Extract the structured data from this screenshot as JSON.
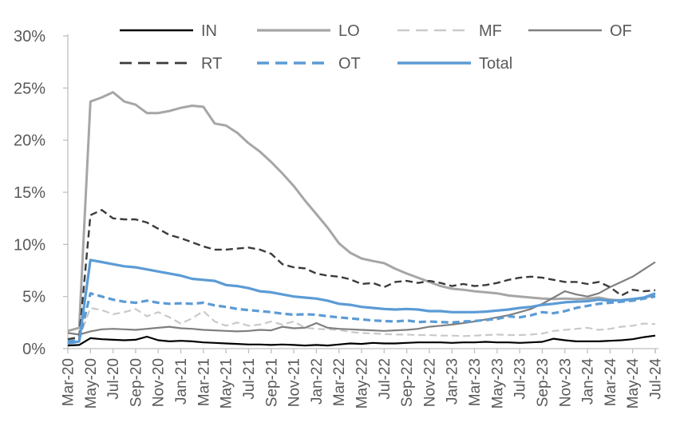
{
  "chart_data": {
    "type": "line",
    "title": "",
    "xlabel": "",
    "ylabel": "",
    "ylim": [
      0,
      30
    ],
    "grid": false,
    "legend_position": "top",
    "y_tick_labels": [
      "0%",
      "5%",
      "10%",
      "15%",
      "20%",
      "25%",
      "30%"
    ],
    "x": [
      "Mar-20",
      "Apr-20",
      "May-20",
      "Jun-20",
      "Jul-20",
      "Aug-20",
      "Sep-20",
      "Oct-20",
      "Nov-20",
      "Dec-20",
      "Jan-21",
      "Feb-21",
      "Mar-21",
      "Apr-21",
      "May-21",
      "Jun-21",
      "Jul-21",
      "Aug-21",
      "Sep-21",
      "Oct-21",
      "Nov-21",
      "Dec-21",
      "Jan-22",
      "Feb-22",
      "Mar-22",
      "Apr-22",
      "May-22",
      "Jun-22",
      "Jul-22",
      "Aug-22",
      "Sep-22",
      "Oct-22",
      "Nov-22",
      "Dec-22",
      "Jan-23",
      "Feb-23",
      "Mar-23",
      "Apr-23",
      "May-23",
      "Jun-23",
      "Jul-23",
      "Aug-23",
      "Sep-23",
      "Oct-23",
      "Nov-23",
      "Dec-23",
      "Jan-24",
      "Feb-24",
      "Mar-24",
      "Apr-24",
      "May-24",
      "Jun-24",
      "Jul-24"
    ],
    "x_labels_shown_every": 2,
    "series": [
      {
        "name": "IN",
        "color": "#000000",
        "dash": "solid",
        "width": 2.2,
        "values": [
          0.3,
          0.35,
          1.0,
          0.9,
          0.85,
          0.8,
          0.85,
          1.15,
          0.8,
          0.7,
          0.75,
          0.7,
          0.6,
          0.55,
          0.5,
          0.45,
          0.4,
          0.4,
          0.35,
          0.4,
          0.35,
          0.3,
          0.35,
          0.3,
          0.4,
          0.5,
          0.45,
          0.55,
          0.5,
          0.5,
          0.55,
          0.6,
          0.6,
          0.6,
          0.55,
          0.6,
          0.6,
          0.65,
          0.6,
          0.6,
          0.55,
          0.6,
          0.65,
          0.95,
          0.8,
          0.7,
          0.7,
          0.7,
          0.75,
          0.8,
          0.9,
          1.1,
          1.25
        ]
      },
      {
        "name": "LO",
        "color": "#A6A6A6",
        "dash": "solid",
        "width": 3,
        "values": [
          1.7,
          2.0,
          23.7,
          24.1,
          24.6,
          23.7,
          23.4,
          22.6,
          22.6,
          22.8,
          23.1,
          23.3,
          23.2,
          21.6,
          21.4,
          20.7,
          19.7,
          18.9,
          17.9,
          16.8,
          15.6,
          14.2,
          12.9,
          11.6,
          10.1,
          9.2,
          8.65,
          8.4,
          8.2,
          7.65,
          7.2,
          6.8,
          6.4,
          6.0,
          5.75,
          5.65,
          5.5,
          5.4,
          5.3,
          5.1,
          5.0,
          4.9,
          4.8,
          4.75,
          4.8,
          4.75,
          4.8,
          4.9,
          4.7,
          4.6,
          4.7,
          4.9,
          5.1
        ]
      },
      {
        "name": "MF",
        "color": "#C9C9C9",
        "dash": "dashed",
        "width": 2.2,
        "values": [
          0.9,
          1.0,
          3.9,
          3.7,
          3.3,
          3.5,
          3.8,
          3.1,
          3.5,
          3.0,
          2.4,
          2.9,
          3.6,
          2.6,
          2.2,
          2.5,
          2.2,
          2.3,
          2.6,
          2.3,
          2.6,
          2.0,
          1.9,
          1.85,
          1.8,
          1.6,
          1.5,
          1.45,
          1.4,
          1.35,
          1.35,
          1.3,
          1.3,
          1.25,
          1.25,
          1.2,
          1.25,
          1.3,
          1.35,
          1.3,
          1.3,
          1.35,
          1.45,
          1.7,
          1.8,
          1.9,
          2.0,
          1.8,
          1.9,
          2.1,
          2.2,
          2.4,
          2.35
        ]
      },
      {
        "name": "OF",
        "color": "#7F7F7F",
        "dash": "solid",
        "width": 2.2,
        "values": [
          1.5,
          1.35,
          1.65,
          1.85,
          1.9,
          1.85,
          1.8,
          1.9,
          2.0,
          2.1,
          1.95,
          1.9,
          1.8,
          1.75,
          1.7,
          1.65,
          1.7,
          1.8,
          1.75,
          2.1,
          1.95,
          2.0,
          2.45,
          2.0,
          1.9,
          1.85,
          1.8,
          1.75,
          1.7,
          1.75,
          1.8,
          1.9,
          2.1,
          2.2,
          2.3,
          2.45,
          2.6,
          2.8,
          3.0,
          3.2,
          3.5,
          3.8,
          4.3,
          4.9,
          5.5,
          5.2,
          5.0,
          5.3,
          5.9,
          6.4,
          6.9,
          7.6,
          8.3
        ]
      },
      {
        "name": "RT",
        "color": "#3B3B3B",
        "dash": "dashed",
        "width": 2.4,
        "values": [
          0.9,
          1.1,
          12.8,
          13.3,
          12.5,
          12.4,
          12.4,
          12.1,
          11.5,
          10.9,
          10.6,
          10.2,
          9.8,
          9.5,
          9.5,
          9.6,
          9.7,
          9.5,
          9.1,
          8.1,
          7.8,
          7.7,
          7.2,
          7.0,
          6.9,
          6.65,
          6.2,
          6.3,
          5.9,
          6.4,
          6.5,
          6.3,
          6.5,
          6.3,
          6.0,
          6.2,
          6.0,
          6.1,
          6.3,
          6.6,
          6.8,
          6.9,
          6.8,
          6.6,
          6.4,
          6.4,
          6.2,
          6.4,
          5.9,
          5.1,
          5.65,
          5.5,
          5.6
        ]
      },
      {
        "name": "OT",
        "color": "#5B9BD5",
        "dash": "dashed",
        "width": 3.2,
        "values": [
          0.7,
          0.8,
          5.3,
          5.0,
          4.7,
          4.5,
          4.4,
          4.6,
          4.4,
          4.3,
          4.35,
          4.3,
          4.4,
          4.15,
          4.0,
          3.8,
          3.7,
          3.6,
          3.5,
          3.35,
          3.25,
          3.3,
          3.25,
          3.1,
          3.0,
          2.9,
          2.8,
          2.7,
          2.65,
          2.6,
          2.7,
          2.55,
          2.6,
          2.55,
          2.5,
          2.6,
          2.65,
          2.75,
          2.85,
          3.1,
          3.0,
          3.2,
          3.5,
          3.4,
          3.6,
          3.9,
          4.1,
          4.3,
          4.4,
          4.5,
          4.6,
          4.8,
          5.0
        ]
      },
      {
        "name": "Total",
        "color": "#5B9BD5",
        "dash": "solid",
        "width": 3.2,
        "values": [
          0.5,
          0.7,
          8.5,
          8.3,
          8.1,
          7.9,
          7.8,
          7.6,
          7.4,
          7.2,
          7.0,
          6.7,
          6.6,
          6.5,
          6.1,
          6.0,
          5.8,
          5.5,
          5.4,
          5.2,
          5.0,
          4.9,
          4.8,
          4.6,
          4.3,
          4.2,
          4.0,
          3.9,
          3.8,
          3.75,
          3.8,
          3.75,
          3.6,
          3.6,
          3.5,
          3.5,
          3.5,
          3.55,
          3.65,
          3.75,
          3.9,
          4.0,
          4.2,
          4.3,
          4.45,
          4.5,
          4.55,
          4.7,
          4.6,
          4.65,
          4.75,
          4.9,
          5.3
        ]
      }
    ],
    "legend": {
      "rows": [
        [
          "IN",
          "LO",
          "MF",
          "OF"
        ],
        [
          "RT",
          "OT",
          "Total"
        ]
      ]
    },
    "axis_color": "#BFBFBF",
    "tick_label_color": "#595959"
  }
}
